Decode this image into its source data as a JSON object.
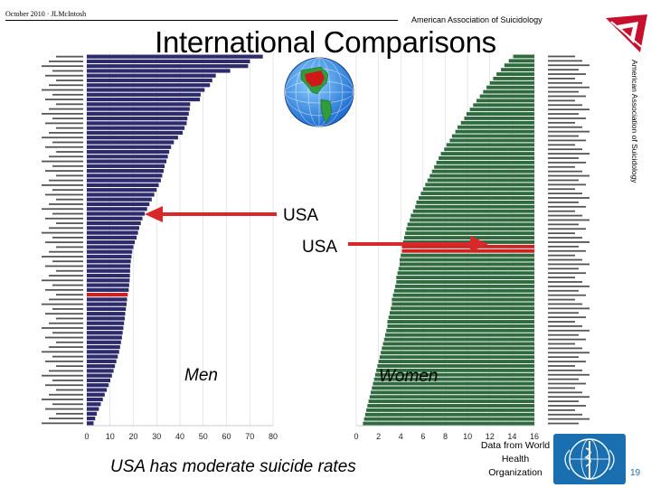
{
  "header": {
    "date_line": "October 2010 · JLMcIntosh",
    "org": "American Association of Suicidology",
    "title": "International Comparisons",
    "side_text": "American Association of Suicidology"
  },
  "footer": {
    "note": "USA has moderate suicide rates",
    "source": "Data from World Health Organization",
    "page": "19"
  },
  "annotations": {
    "usa_men": "USA",
    "usa_women": "USA",
    "men": "Men",
    "women": "Women"
  },
  "colors": {
    "men_bars": "#2d2b6b",
    "women_bars": "#2f6b3e",
    "arrow": "#d8282a",
    "usa_highlight": "#cc2222",
    "logo": "#c8102e",
    "who": "#1a6fb0"
  },
  "icons": [
    "aas-logo-icon",
    "globe-icon",
    "who-logo-icon"
  ],
  "chart_data": [
    {
      "type": "bar",
      "orientation": "horizontal",
      "panel": "Men",
      "xlim": [
        0,
        80
      ],
      "x_ticks": [
        "0",
        "10",
        "20",
        "30",
        "40",
        "50",
        "60",
        "70",
        "80"
      ],
      "bar_count": 78,
      "highlight_label": "USA",
      "highlight_value": 17.6,
      "values": [
        75.6,
        70.1,
        69.3,
        61.6,
        55.4,
        53.9,
        52.9,
        50.6,
        48.9,
        48.6,
        44.4,
        44.2,
        43.8,
        43.2,
        42.9,
        42.0,
        41.2,
        39.2,
        37.4,
        36.2,
        35.4,
        34.8,
        34.2,
        33.4,
        33.0,
        32.4,
        31.8,
        30.9,
        30.0,
        29.0,
        27.9,
        26.9,
        25.9,
        24.9,
        23.9,
        23.2,
        22.5,
        22.0,
        21.4,
        20.6,
        20.0,
        19.5,
        19.2,
        18.9,
        18.7,
        18.6,
        18.5,
        18.4,
        18.2,
        18.0,
        17.6,
        17.3,
        17.1,
        16.8,
        16.5,
        16.3,
        16.0,
        15.7,
        15.4,
        15.1,
        14.7,
        14.3,
        13.9,
        13.3,
        12.7,
        12.1,
        11.5,
        10.8,
        10.1,
        9.4,
        8.6,
        7.7,
        6.9,
        6.0,
        5.2,
        4.3,
        3.6,
        2.9
      ]
    },
    {
      "type": "bar",
      "orientation": "horizontal",
      "panel": "Women",
      "x_reversed": true,
      "xlim": [
        16,
        0
      ],
      "x_ticks": [
        "16",
        "14",
        "12",
        "10",
        "8",
        "6",
        "4",
        "2",
        "0"
      ],
      "bar_count": 84,
      "highlight_label": "USA",
      "highlight_value": 4.1,
      "values": [
        14.1,
        13.7,
        13.3,
        13.0,
        12.6,
        12.3,
        12.0,
        11.7,
        11.4,
        11.1,
        10.8,
        10.5,
        10.2,
        9.9,
        9.7,
        9.4,
        9.1,
        8.9,
        8.6,
        8.4,
        8.1,
        7.9,
        7.6,
        7.4,
        7.2,
        7.0,
        6.8,
        6.6,
        6.4,
        6.2,
        6.0,
        5.8,
        5.6,
        5.4,
        5.3,
        5.1,
        4.9,
        4.8,
        4.6,
        4.5,
        4.4,
        4.3,
        4.2,
        4.1,
        4.1,
        4.0,
        3.9,
        3.9,
        3.8,
        3.7,
        3.6,
        3.6,
        3.5,
        3.4,
        3.3,
        3.2,
        3.2,
        3.1,
        3.0,
        2.9,
        2.8,
        2.8,
        2.7,
        2.6,
        2.5,
        2.4,
        2.3,
        2.2,
        2.1,
        2.0,
        1.9,
        1.8,
        1.7,
        1.6,
        1.5,
        1.4,
        1.3,
        1.2,
        1.1,
        1.0,
        0.9,
        0.8,
        0.7,
        0.6
      ]
    }
  ]
}
